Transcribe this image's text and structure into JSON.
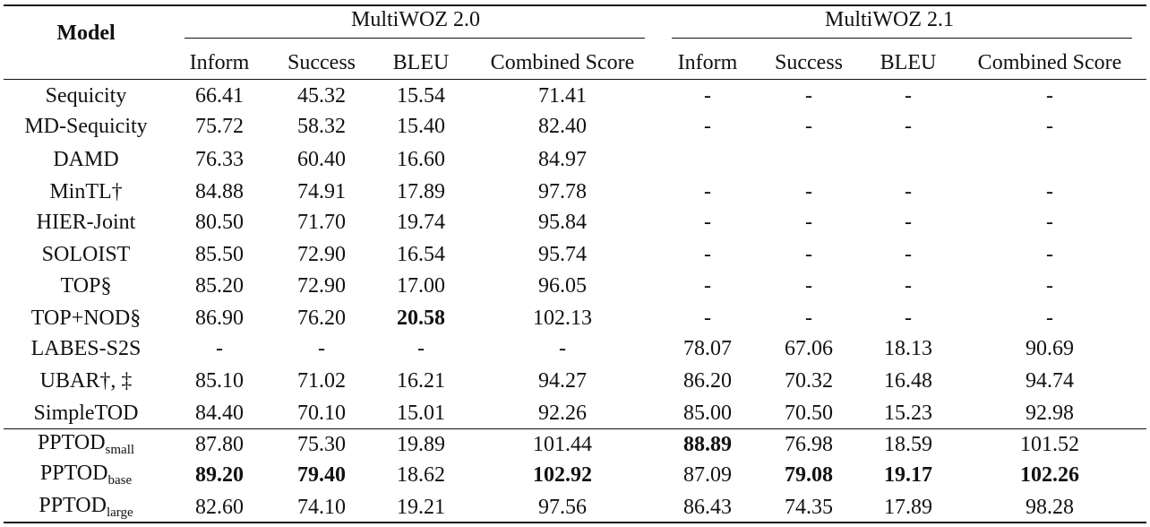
{
  "table": {
    "model_header": "Model",
    "groups": [
      "MultiWOZ 2.0",
      "MultiWOZ 2.1"
    ],
    "metric_headers": [
      "Inform",
      "Success",
      "BLEU",
      "Combined Score",
      "Inform",
      "Success",
      "BLEU",
      "Combined Score"
    ],
    "rows": [
      {
        "model": "Sequicity",
        "sub": "",
        "cells": [
          {
            "v": "66.41"
          },
          {
            "v": "45.32"
          },
          {
            "v": "15.54"
          },
          {
            "v": "71.41"
          },
          {
            "v": "-"
          },
          {
            "v": "-"
          },
          {
            "v": "-"
          },
          {
            "v": "-"
          }
        ]
      },
      {
        "model": "MD-Sequicity",
        "sub": "",
        "cells": [
          {
            "v": "75.72"
          },
          {
            "v": "58.32"
          },
          {
            "v": "15.40"
          },
          {
            "v": "82.40"
          },
          {
            "v": "-"
          },
          {
            "v": "-"
          },
          {
            "v": "-"
          },
          {
            "v": "-"
          }
        ]
      },
      {
        "model": "DAMD",
        "sub": "",
        "cells": [
          {
            "v": "76.33"
          },
          {
            "v": "60.40"
          },
          {
            "v": "16.60"
          },
          {
            "v": "84.97"
          },
          {
            "v": ""
          },
          {
            "v": ""
          },
          {
            "v": ""
          },
          {
            "v": ""
          }
        ]
      },
      {
        "model": "MinTL†",
        "sub": "",
        "cells": [
          {
            "v": "84.88"
          },
          {
            "v": "74.91"
          },
          {
            "v": "17.89"
          },
          {
            "v": "97.78"
          },
          {
            "v": "-"
          },
          {
            "v": "-"
          },
          {
            "v": "-"
          },
          {
            "v": "-"
          }
        ]
      },
      {
        "model": "HIER-Joint",
        "sub": "",
        "cells": [
          {
            "v": "80.50"
          },
          {
            "v": "71.70"
          },
          {
            "v": "19.74"
          },
          {
            "v": "95.84"
          },
          {
            "v": "-"
          },
          {
            "v": "-"
          },
          {
            "v": "-"
          },
          {
            "v": "-"
          }
        ]
      },
      {
        "model": "SOLOIST",
        "sub": "",
        "cells": [
          {
            "v": "85.50"
          },
          {
            "v": "72.90"
          },
          {
            "v": "16.54"
          },
          {
            "v": "95.74"
          },
          {
            "v": "-"
          },
          {
            "v": "-"
          },
          {
            "v": "-"
          },
          {
            "v": "-"
          }
        ]
      },
      {
        "model": "TOP§",
        "sub": "",
        "cells": [
          {
            "v": "85.20"
          },
          {
            "v": "72.90"
          },
          {
            "v": "17.00"
          },
          {
            "v": "96.05"
          },
          {
            "v": "-"
          },
          {
            "v": "-"
          },
          {
            "v": "-"
          },
          {
            "v": "-"
          }
        ]
      },
      {
        "model": "TOP+NOD§",
        "sub": "",
        "cells": [
          {
            "v": "86.90"
          },
          {
            "v": "76.20"
          },
          {
            "v": "20.58",
            "bold": true
          },
          {
            "v": "102.13"
          },
          {
            "v": "-"
          },
          {
            "v": "-"
          },
          {
            "v": "-"
          },
          {
            "v": "-"
          }
        ]
      },
      {
        "model": "LABES-S2S",
        "sub": "",
        "cells": [
          {
            "v": "-"
          },
          {
            "v": "-"
          },
          {
            "v": "-"
          },
          {
            "v": "-"
          },
          {
            "v": "78.07"
          },
          {
            "v": "67.06"
          },
          {
            "v": "18.13"
          },
          {
            "v": "90.69"
          }
        ]
      },
      {
        "model": "UBAR†, ‡",
        "sub": "",
        "cells": [
          {
            "v": "85.10"
          },
          {
            "v": "71.02"
          },
          {
            "v": "16.21"
          },
          {
            "v": "94.27"
          },
          {
            "v": "86.20"
          },
          {
            "v": "70.32"
          },
          {
            "v": "16.48"
          },
          {
            "v": "94.74"
          }
        ]
      },
      {
        "model": "SimpleTOD",
        "sub": "",
        "cells": [
          {
            "v": "84.40"
          },
          {
            "v": "70.10"
          },
          {
            "v": "15.01"
          },
          {
            "v": "92.26"
          },
          {
            "v": "85.00"
          },
          {
            "v": "70.50"
          },
          {
            "v": "15.23"
          },
          {
            "v": "92.98"
          }
        ]
      },
      {
        "model": "PPTOD",
        "sub": "small",
        "cells": [
          {
            "v": "87.80"
          },
          {
            "v": "75.30"
          },
          {
            "v": "19.89"
          },
          {
            "v": "101.44"
          },
          {
            "v": "88.89",
            "bold": true
          },
          {
            "v": "76.98"
          },
          {
            "v": "18.59"
          },
          {
            "v": "101.52"
          }
        ]
      },
      {
        "model": "PPTOD",
        "sub": "base",
        "cells": [
          {
            "v": "89.20",
            "bold": true
          },
          {
            "v": "79.40",
            "bold": true
          },
          {
            "v": "18.62"
          },
          {
            "v": "102.92",
            "bold": true
          },
          {
            "v": "87.09"
          },
          {
            "v": "79.08",
            "bold": true
          },
          {
            "v": "19.17",
            "bold": true
          },
          {
            "v": "102.26",
            "bold": true
          }
        ]
      },
      {
        "model": "PPTOD",
        "sub": "large",
        "cells": [
          {
            "v": "82.60"
          },
          {
            "v": "74.10"
          },
          {
            "v": "19.21"
          },
          {
            "v": "97.56"
          },
          {
            "v": "86.43"
          },
          {
            "v": "74.35"
          },
          {
            "v": "17.89"
          },
          {
            "v": "98.28"
          }
        ]
      }
    ]
  }
}
